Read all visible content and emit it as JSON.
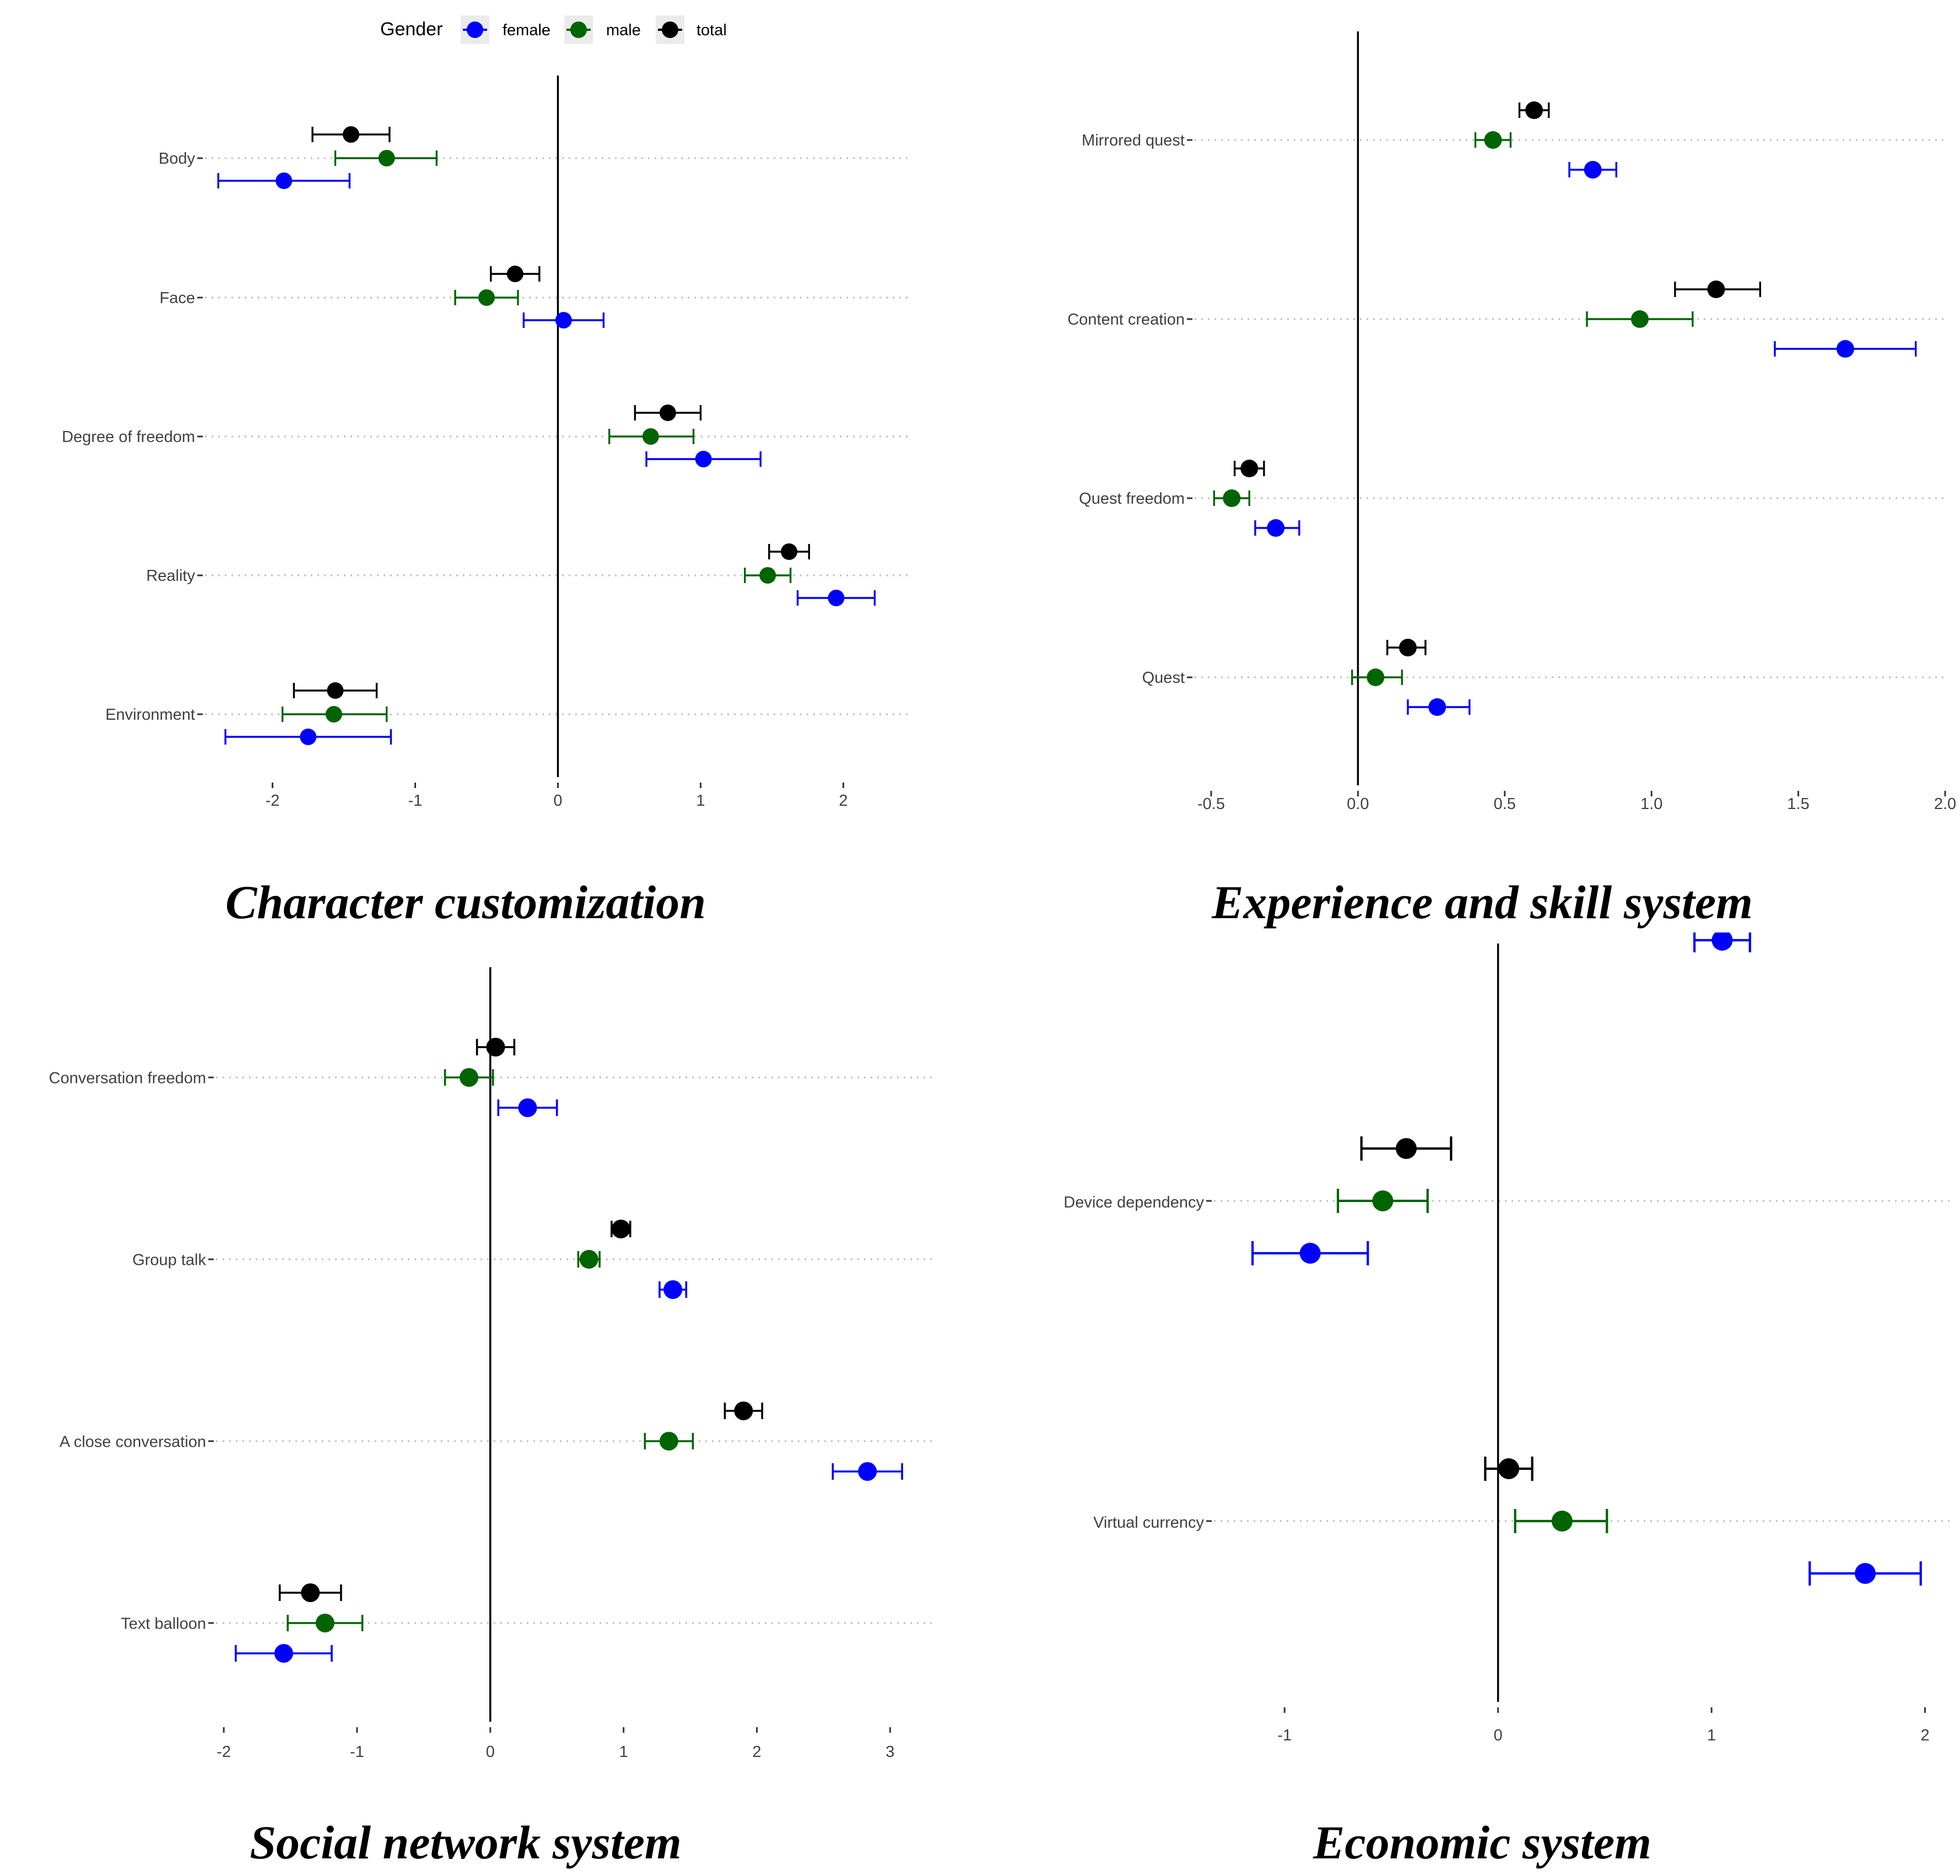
{
  "legend": {
    "title": "Gender",
    "entries": [
      {
        "label": "female",
        "color": "#0000ff"
      },
      {
        "label": "male",
        "color": "#006400"
      },
      {
        "label": "total",
        "color": "#000000"
      }
    ]
  },
  "chart_data": [
    {
      "type": "dot-errorbar",
      "title": "Character customization",
      "xlim": [
        -2.45,
        2.45
      ],
      "xticks": [
        -2,
        -1,
        0,
        1,
        2
      ],
      "tick_labels": [
        "-2",
        "-1",
        "0",
        "1",
        "2"
      ],
      "categories": [
        "Body",
        "Face",
        "Degree of freedom",
        "Reality",
        "Environment"
      ],
      "series": [
        {
          "name": "total",
          "values": [
            -1.45,
            -0.3,
            0.77,
            1.62,
            -1.56
          ],
          "lower": [
            -1.72,
            -0.47,
            0.54,
            1.48,
            -1.85
          ],
          "upper": [
            -1.18,
            -0.13,
            1.0,
            1.76,
            -1.27
          ]
        },
        {
          "name": "male",
          "values": [
            -1.2,
            -0.5,
            0.65,
            1.47,
            -1.57
          ],
          "lower": [
            -1.56,
            -0.72,
            0.36,
            1.31,
            -1.93
          ],
          "upper": [
            -0.85,
            -0.28,
            0.95,
            1.63,
            -1.2
          ]
        },
        {
          "name": "female",
          "values": [
            -1.92,
            0.04,
            1.02,
            1.95,
            -1.75
          ],
          "lower": [
            -2.38,
            -0.24,
            0.62,
            1.68,
            -2.33
          ],
          "upper": [
            -1.46,
            0.32,
            1.42,
            2.22,
            -1.17
          ]
        }
      ]
    },
    {
      "type": "dot-errorbar",
      "title": "Experience and skill system",
      "xlim": [
        -0.5,
        2.0
      ],
      "xticks": [
        -0.5,
        0.0,
        0.5,
        1.0,
        1.5,
        2.0
      ],
      "tick_labels": [
        "-0.5",
        "0.0",
        "0.5",
        "1.0",
        "1.5",
        "2.0"
      ],
      "categories": [
        "Mirrored quest",
        "Content creation",
        "Quest freedom",
        "Quest"
      ],
      "series": [
        {
          "name": "total",
          "values": [
            0.6,
            1.22,
            -0.37,
            0.17
          ],
          "lower": [
            0.55,
            1.08,
            -0.42,
            0.1
          ],
          "upper": [
            0.65,
            1.37,
            -0.32,
            0.23
          ]
        },
        {
          "name": "male",
          "values": [
            0.46,
            0.96,
            -0.43,
            0.06
          ],
          "lower": [
            0.4,
            0.78,
            -0.49,
            -0.02
          ],
          "upper": [
            0.52,
            1.14,
            -0.37,
            0.15
          ]
        },
        {
          "name": "female",
          "values": [
            0.8,
            1.66,
            -0.28,
            0.27
          ],
          "lower": [
            0.72,
            1.42,
            -0.35,
            0.17
          ],
          "upper": [
            0.88,
            1.9,
            -0.2,
            0.38
          ]
        }
      ]
    },
    {
      "type": "dot-errorbar",
      "title": "Social network system",
      "xlim": [
        -2.05,
        3.35
      ],
      "xticks": [
        -2,
        -1,
        0,
        1,
        2,
        3
      ],
      "tick_labels": [
        "-2",
        "-1",
        "0",
        "1",
        "2",
        "3"
      ],
      "categories": [
        "Conversation freedom",
        "Group talk",
        "A close conversation",
        "Text balloon"
      ],
      "series": [
        {
          "name": "total",
          "values": [
            0.04,
            0.98,
            1.9,
            -1.35
          ],
          "lower": [
            -0.1,
            0.91,
            1.76,
            -1.58
          ],
          "upper": [
            0.18,
            1.05,
            2.04,
            -1.12
          ]
        },
        {
          "name": "male",
          "values": [
            -0.16,
            0.74,
            1.34,
            -1.24
          ],
          "lower": [
            -0.34,
            0.66,
            1.16,
            -1.52
          ],
          "upper": [
            0.02,
            0.82,
            1.52,
            -0.96
          ]
        },
        {
          "name": "female",
          "values": [
            0.28,
            1.37,
            2.83,
            -1.55
          ],
          "lower": [
            0.06,
            1.27,
            2.57,
            -1.91
          ],
          "upper": [
            0.5,
            1.47,
            3.09,
            -1.19
          ]
        }
      ]
    },
    {
      "type": "dot-errorbar",
      "title": "Economic system",
      "xlim": [
        -1.3,
        2.12
      ],
      "xticks": [
        -1,
        0,
        1,
        2
      ],
      "tick_labels": [
        "-1",
        "0",
        "1",
        "2"
      ],
      "categories": [
        "Device dependency",
        "Virtual currency"
      ],
      "series": [
        {
          "name": "total",
          "values": [
            -0.43,
            0.05
          ],
          "lower": [
            -0.64,
            -0.06
          ],
          "upper": [
            -0.22,
            0.16
          ]
        },
        {
          "name": "male",
          "values": [
            -0.54,
            0.3
          ],
          "lower": [
            -0.75,
            0.08
          ],
          "upper": [
            -0.33,
            0.51
          ]
        },
        {
          "name": "female",
          "values": [
            -0.88,
            1.72
          ],
          "lower": [
            -1.15,
            1.46
          ],
          "upper": [
            -0.61,
            1.98
          ]
        }
      ],
      "clipped_marker": {
        "name": "female",
        "value": 1.05,
        "lower": 0.92,
        "upper": 1.18
      }
    }
  ]
}
